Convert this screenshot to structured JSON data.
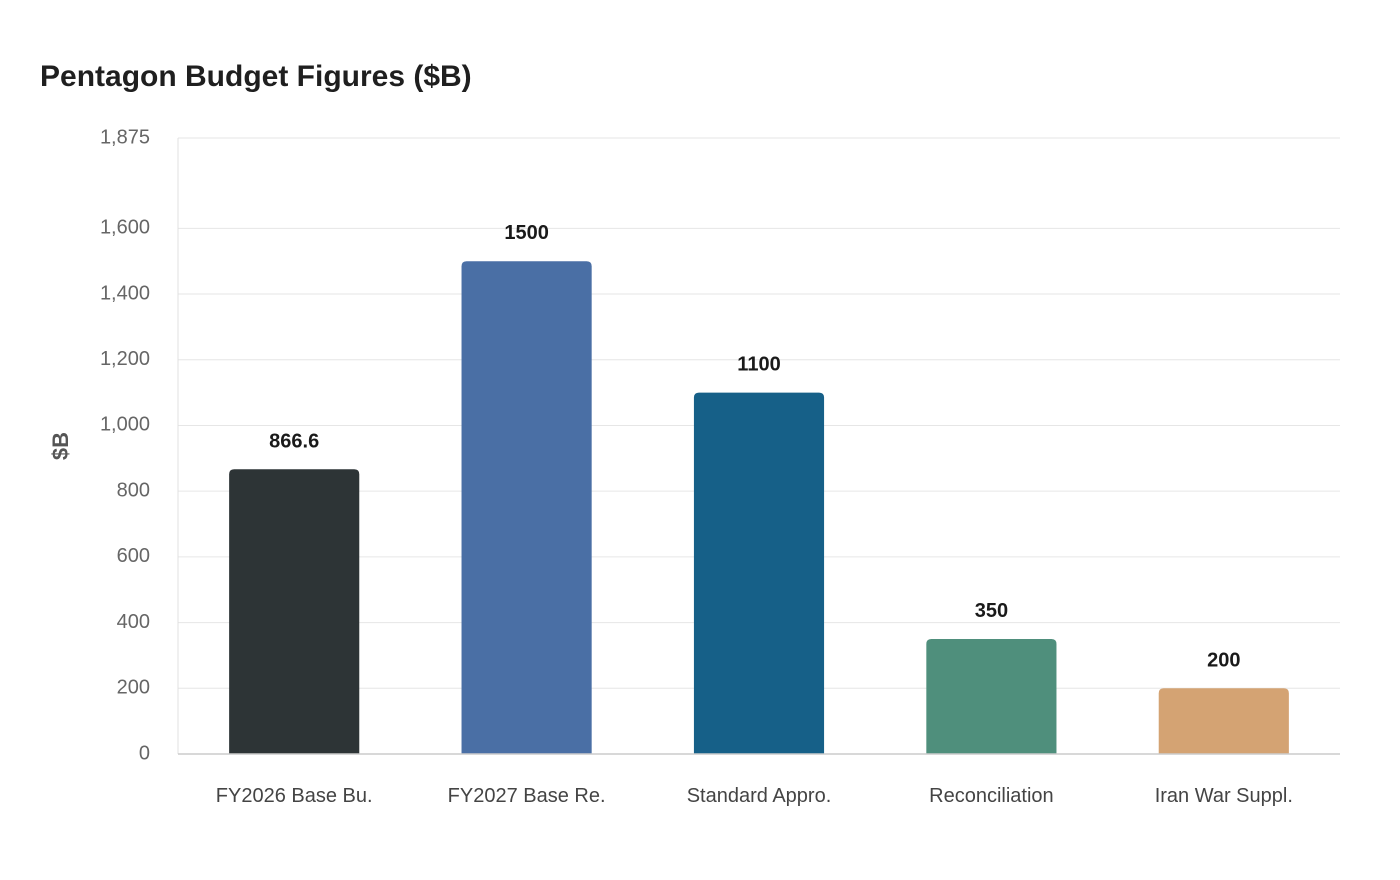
{
  "chart_data": {
    "type": "bar",
    "title": "Pentagon Budget Figures ($B)",
    "xlabel": "",
    "ylabel": "$B",
    "categories": [
      "FY2026 Base Bu.",
      "FY2027 Base Re.",
      "Standard Appro.",
      "Reconciliation",
      "Iran War Suppl."
    ],
    "values": [
      866.6,
      1500,
      1100,
      350,
      200
    ],
    "value_labels": [
      "866.6",
      "1500",
      "1100",
      "350",
      "200"
    ],
    "colors": [
      "#2d3436",
      "#4a6fa5",
      "#166088",
      "#4f8f7c",
      "#d4a373"
    ],
    "ylim": [
      0,
      1875
    ],
    "yticks": [
      0,
      200,
      400,
      600,
      800,
      1000,
      1200,
      1400,
      1600,
      1875
    ],
    "ytick_labels": [
      "0",
      "200",
      "400",
      "600",
      "800",
      "1,000",
      "1,200",
      "1,400",
      "1,600",
      "1,875"
    ],
    "grid": true,
    "legend": "none"
  }
}
